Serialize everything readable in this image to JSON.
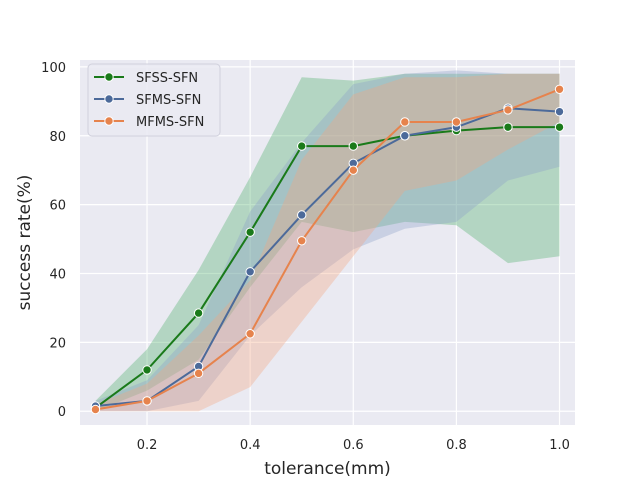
{
  "chart_data": {
    "type": "line",
    "title": "",
    "xlabel": "tolerance(mm)",
    "ylabel": "success rate(%)",
    "xlim": [
      0.07,
      1.03
    ],
    "ylim": [
      -4,
      102
    ],
    "xticks": [
      0.2,
      0.4,
      0.6,
      0.8,
      1.0
    ],
    "xtick_labels": [
      "0.2",
      "0.4",
      "0.6",
      "0.8",
      "1.0"
    ],
    "yticks": [
      0,
      20,
      40,
      60,
      80,
      100
    ],
    "ytick_labels": [
      "0",
      "20",
      "40",
      "60",
      "80",
      "100"
    ],
    "grid": true,
    "legend_position": "top-left",
    "x": [
      0.1,
      0.2,
      0.3,
      0.4,
      0.5,
      0.6,
      0.7,
      0.8,
      0.9,
      1.0
    ],
    "series": [
      {
        "name": "SFSS-SFN",
        "color": "#1a7a1a",
        "band_color": "#4caf6a",
        "values": [
          1,
          12,
          28.5,
          52,
          77,
          77,
          80,
          81.5,
          82.5,
          82.5
        ],
        "lower": [
          0,
          6,
          15,
          36,
          55,
          52,
          55,
          54,
          43,
          45
        ],
        "upper": [
          3,
          18,
          41,
          68,
          97,
          96,
          98,
          98,
          98,
          98
        ]
      },
      {
        "name": "SFMS-SFN",
        "color": "#4c6a9a",
        "band_color": "#8ca0c8",
        "values": [
          1.5,
          3,
          13,
          40.5,
          57,
          72,
          80,
          82.5,
          88,
          87
        ],
        "lower": [
          0,
          0,
          3,
          22,
          36,
          47,
          53,
          55,
          67,
          71
        ],
        "upper": [
          3,
          9,
          25,
          58,
          78,
          95,
          98,
          99,
          98,
          98
        ]
      },
      {
        "name": "MFMS-SFN",
        "color": "#e6834d",
        "band_color": "#f4a582",
        "values": [
          0.5,
          3,
          11,
          22.5,
          49.5,
          70,
          84,
          84,
          87.5,
          93.5
        ],
        "lower": [
          0,
          0,
          0,
          7,
          26,
          45,
          64,
          67,
          76,
          84
        ],
        "upper": [
          2,
          8,
          22,
          38,
          73,
          92,
          97,
          97,
          98,
          98
        ]
      }
    ]
  }
}
